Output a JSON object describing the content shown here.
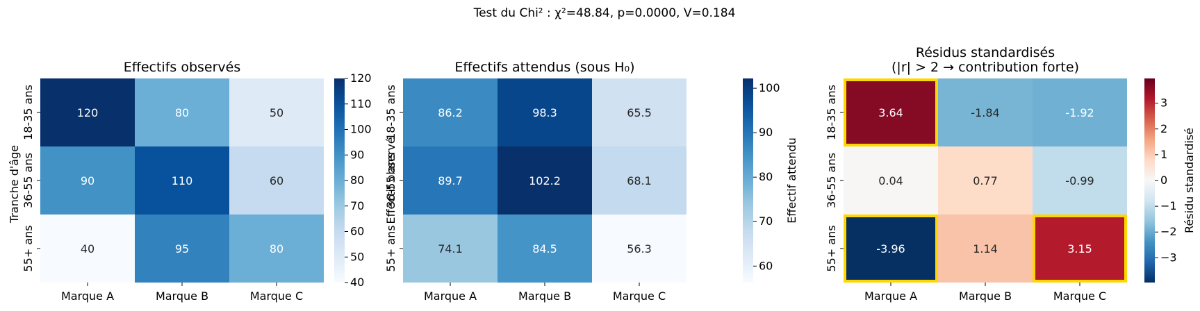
{
  "suptitle": "Test du Chi² : χ²=48.84, p=0.0000, V=0.184",
  "ylabel": "Tranche d'âge",
  "rows": [
    "18-35 ans",
    "36-55 ans",
    "55+ ans"
  ],
  "cols": [
    "Marque A",
    "Marque B",
    "Marque C"
  ],
  "chart_data": [
    {
      "type": "heatmap",
      "title": "Effectifs observés",
      "xlabel": "",
      "ylabel": "Tranche d'âge",
      "categories_x": [
        "Marque A",
        "Marque B",
        "Marque C"
      ],
      "categories_y": [
        "18-35 ans",
        "36-55 ans",
        "55+ ans"
      ],
      "values": [
        [
          120,
          80,
          50
        ],
        [
          90,
          110,
          60
        ],
        [
          40,
          95,
          80
        ]
      ],
      "labels": [
        [
          "120",
          "80",
          "50"
        ],
        [
          "90",
          "110",
          "60"
        ],
        [
          "40",
          "95",
          "80"
        ]
      ],
      "colormap": "Blues",
      "vmin": 40,
      "vmax": 120,
      "colorbar_label": "Effectif observé",
      "colorbar_ticks": [
        40,
        50,
        60,
        70,
        80,
        90,
        100,
        110,
        120
      ],
      "colorbar_tick_labels": [
        "40",
        "50",
        "60",
        "70",
        "80",
        "90",
        "100",
        "110",
        "120"
      ],
      "highlight": []
    },
    {
      "type": "heatmap",
      "title": "Effectifs attendus (sous H₀)",
      "xlabel": "",
      "ylabel": "",
      "categories_x": [
        "Marque A",
        "Marque B",
        "Marque C"
      ],
      "categories_y": [
        "18-35 ans",
        "36-55 ans",
        "55+ ans"
      ],
      "values": [
        [
          86.2,
          98.3,
          65.5
        ],
        [
          89.7,
          102.2,
          68.1
        ],
        [
          74.1,
          84.5,
          56.3
        ]
      ],
      "labels": [
        [
          "86.2",
          "98.3",
          "65.5"
        ],
        [
          "89.7",
          "102.2",
          "68.1"
        ],
        [
          "74.1",
          "84.5",
          "56.3"
        ]
      ],
      "colormap": "Blues",
      "vmin": 56.3,
      "vmax": 102.2,
      "colorbar_label": "Effectif attendu",
      "colorbar_ticks": [
        60,
        70,
        80,
        90,
        100
      ],
      "colorbar_tick_labels": [
        "60",
        "70",
        "80",
        "90",
        "100"
      ],
      "highlight": []
    },
    {
      "type": "heatmap",
      "title": "Résidus standardisés\n(|r| > 2 → contribution forte)",
      "title_lines": [
        "Résidus standardisés",
        "(|r| > 2 → contribution forte)"
      ],
      "xlabel": "",
      "ylabel": "",
      "categories_x": [
        "Marque A",
        "Marque B",
        "Marque C"
      ],
      "categories_y": [
        "18-35 ans",
        "36-55 ans",
        "55+ ans"
      ],
      "values": [
        [
          3.64,
          -1.84,
          -1.92
        ],
        [
          0.04,
          0.77,
          -0.99
        ],
        [
          -3.96,
          1.14,
          3.15
        ]
      ],
      "labels": [
        [
          "3.64",
          "-1.84",
          "-1.92"
        ],
        [
          "0.04",
          "0.77",
          "-0.99"
        ],
        [
          "-3.96",
          "1.14",
          "3.15"
        ]
      ],
      "colormap": "RdBu_r",
      "vmin": -3.96,
      "vmax": 3.96,
      "colorbar_label": "Résidu standardisé",
      "colorbar_ticks": [
        -3,
        -2,
        -1,
        0,
        1,
        2,
        3
      ],
      "colorbar_tick_labels": [
        "−3",
        "−2",
        "−1",
        "0",
        "1",
        "2",
        "3"
      ],
      "highlight": [
        [
          0,
          0
        ],
        [
          2,
          0
        ],
        [
          2,
          2
        ]
      ],
      "highlight_rule": "|r| > 2",
      "highlight_color": "#FFD700"
    }
  ]
}
